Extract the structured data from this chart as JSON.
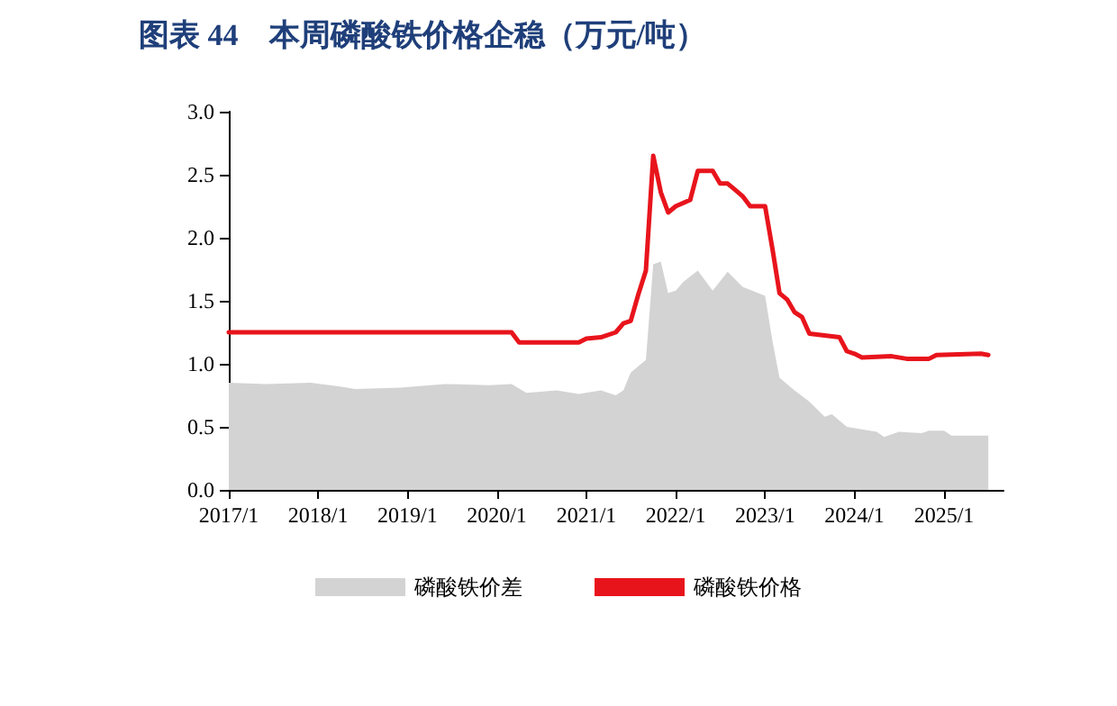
{
  "chart_data": {
    "type": "line",
    "title": "图表 44　本周磷酸铁价格企稳（万元/吨）",
    "xlim": [
      "2017-01",
      "2025-09"
    ],
    "xticks": [
      {
        "value": "2017-01",
        "label": "2017/1"
      },
      {
        "value": "2018-01",
        "label": "2018/1"
      },
      {
        "value": "2019-01",
        "label": "2019/1"
      },
      {
        "value": "2020-01",
        "label": "2020/1"
      },
      {
        "value": "2021-01",
        "label": "2021/1"
      },
      {
        "value": "2022-01",
        "label": "2022/1"
      },
      {
        "value": "2023-01",
        "label": "2023/1"
      },
      {
        "value": "2024-01",
        "label": "2024/1"
      },
      {
        "value": "2025-01",
        "label": "2025/1"
      }
    ],
    "ylim": [
      0,
      3
    ],
    "yticks": [
      {
        "value": 0,
        "label": "0.0"
      },
      0.5,
      {
        "value": 1,
        "label": "1.0"
      },
      1.5,
      {
        "value": 2,
        "label": "2.0"
      },
      2.5,
      {
        "value": 3,
        "label": "3.0"
      }
    ],
    "grid": false,
    "legend": "bottom",
    "marker": "none",
    "series": [
      {
        "name": "磷酸铁价差",
        "type": "area",
        "color": "#d3d3d3",
        "x": [
          "2017-01",
          "2017-06",
          "2017-12",
          "2018-04",
          "2018-06",
          "2018-12",
          "2019-06",
          "2019-12",
          "2020-03",
          "2020-05",
          "2020-09",
          "2020-12",
          "2021-03",
          "2021-05",
          "2021-06",
          "2021-07",
          "2021-09",
          "2021-10",
          "2021-11",
          "2021-12",
          "2022-01",
          "2022-02",
          "2022-04",
          "2022-06",
          "2022-08",
          "2022-10",
          "2023-01",
          "2023-02",
          "2023-03",
          "2023-05",
          "2023-07",
          "2023-09",
          "2023-10",
          "2023-12",
          "2024-04",
          "2024-05",
          "2024-07",
          "2024-10",
          "2024-11",
          "2025-01",
          "2025-02",
          "2025-07"
        ],
        "values": [
          0.85,
          0.84,
          0.85,
          0.82,
          0.8,
          0.81,
          0.84,
          0.83,
          0.84,
          0.77,
          0.79,
          0.76,
          0.79,
          0.75,
          0.79,
          0.93,
          1.03,
          1.79,
          1.81,
          1.56,
          1.58,
          1.65,
          1.74,
          1.58,
          1.73,
          1.61,
          1.54,
          1.17,
          0.89,
          0.79,
          0.7,
          0.58,
          0.6,
          0.5,
          0.46,
          0.42,
          0.46,
          0.45,
          0.47,
          0.47,
          0.43,
          0.43
        ]
      },
      {
        "name": "磷酸铁价格",
        "color": "#e8141c",
        "x": [
          "2017-01",
          "2020-03",
          "2020-04",
          "2020-12",
          "2021-01",
          "2021-03",
          "2021-05",
          "2021-06",
          "2021-07",
          "2021-08",
          "2021-09",
          "2021-10",
          "2021-11",
          "2021-12",
          "2022-01",
          "2022-03",
          "2022-04",
          "2022-06",
          "2022-07",
          "2022-08",
          "2022-09",
          "2022-10",
          "2022-11",
          "2023-01",
          "2023-02",
          "2023-03",
          "2023-04",
          "2023-05",
          "2023-06",
          "2023-07",
          "2023-11",
          "2023-12",
          "2024-01",
          "2024-02",
          "2024-06",
          "2024-08",
          "2024-11",
          "2024-12",
          "2025-06",
          "2025-07"
        ],
        "values": [
          1.25,
          1.25,
          1.17,
          1.17,
          1.2,
          1.21,
          1.25,
          1.32,
          1.34,
          1.55,
          1.74,
          2.65,
          2.36,
          2.2,
          2.25,
          2.3,
          2.53,
          2.53,
          2.43,
          2.43,
          2.38,
          2.33,
          2.25,
          2.25,
          1.9,
          1.56,
          1.51,
          1.41,
          1.37,
          1.24,
          1.21,
          1.1,
          1.08,
          1.05,
          1.06,
          1.04,
          1.04,
          1.07,
          1.08,
          1.07
        ]
      }
    ]
  }
}
